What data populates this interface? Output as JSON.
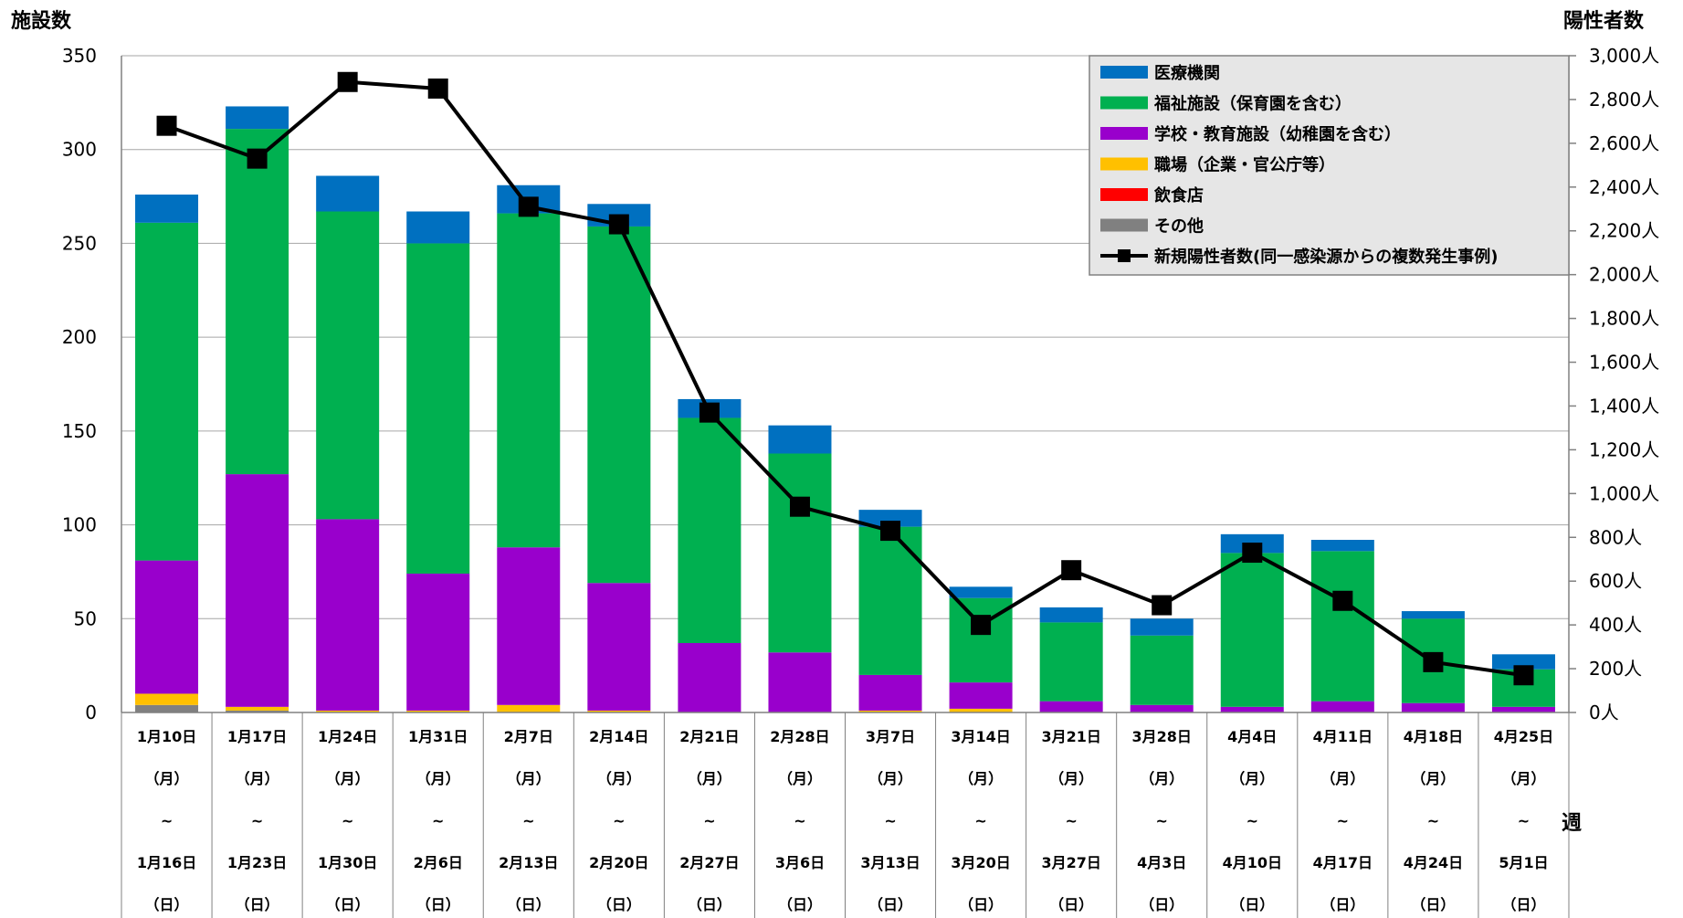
{
  "chart_data": {
    "type": "bar",
    "stacked": true,
    "y_left_title": "施設数",
    "y_right_title": "陽性者数",
    "x_title": "週",
    "y_left_ticks": [
      "0",
      "50",
      "100",
      "150",
      "200",
      "250",
      "300",
      "350"
    ],
    "y_left_range": [
      0,
      350
    ],
    "y_right_ticks": [
      "0人",
      "200人",
      "400人",
      "600人",
      "800人",
      "1,000人",
      "1,200人",
      "1,400人",
      "1,600人",
      "1,800人",
      "2,000人",
      "2,200人",
      "2,400人",
      "2,600人",
      "2,800人",
      "3,000人"
    ],
    "y_right_range": [
      0,
      3000
    ],
    "grid": true,
    "legend_position": "top-right",
    "categories": [
      {
        "start": "1月10日",
        "start_dow": "（月）",
        "sep": "~",
        "end": "1月16日",
        "end_dow": "（日）"
      },
      {
        "start": "1月17日",
        "start_dow": "（月）",
        "sep": "~",
        "end": "1月23日",
        "end_dow": "（日）"
      },
      {
        "start": "1月24日",
        "start_dow": "（月）",
        "sep": "~",
        "end": "1月30日",
        "end_dow": "（日）"
      },
      {
        "start": "1月31日",
        "start_dow": "（月）",
        "sep": "~",
        "end": "2月6日",
        "end_dow": "（日）"
      },
      {
        "start": "2月7日",
        "start_dow": "（月）",
        "sep": "~",
        "end": "2月13日",
        "end_dow": "（日）"
      },
      {
        "start": "2月14日",
        "start_dow": "（月）",
        "sep": "~",
        "end": "2月20日",
        "end_dow": "（日）"
      },
      {
        "start": "2月21日",
        "start_dow": "（月）",
        "sep": "~",
        "end": "2月27日",
        "end_dow": "（日）"
      },
      {
        "start": "2月28日",
        "start_dow": "（月）",
        "sep": "~",
        "end": "3月6日",
        "end_dow": "（日）"
      },
      {
        "start": "3月7日",
        "start_dow": "（月）",
        "sep": "~",
        "end": "3月13日",
        "end_dow": "（日）"
      },
      {
        "start": "3月14日",
        "start_dow": "（月）",
        "sep": "~",
        "end": "3月20日",
        "end_dow": "（日）"
      },
      {
        "start": "3月21日",
        "start_dow": "（月）",
        "sep": "~",
        "end": "3月27日",
        "end_dow": "（日）"
      },
      {
        "start": "3月28日",
        "start_dow": "（月）",
        "sep": "~",
        "end": "4月3日",
        "end_dow": "（日）"
      },
      {
        "start": "4月4日",
        "start_dow": "（月）",
        "sep": "~",
        "end": "4月10日",
        "end_dow": "（日）"
      },
      {
        "start": "4月11日",
        "start_dow": "（月）",
        "sep": "~",
        "end": "4月17日",
        "end_dow": "（日）"
      },
      {
        "start": "4月18日",
        "start_dow": "（月）",
        "sep": "~",
        "end": "4月24日",
        "end_dow": "（日）"
      },
      {
        "start": "4月25日",
        "start_dow": "（月）",
        "sep": "~",
        "end": "5月1日",
        "end_dow": "（日）"
      }
    ],
    "series": [
      {
        "name": "その他",
        "color": "#808080",
        "values": [
          4,
          1,
          0,
          0,
          0,
          0,
          0,
          0,
          0,
          0,
          0,
          0,
          0,
          0,
          0,
          0
        ]
      },
      {
        "name": "飲食店",
        "color": "#ff0000",
        "values": [
          0,
          0,
          0,
          0,
          0,
          0,
          0,
          0,
          0,
          0,
          0,
          0,
          0,
          0,
          0,
          0
        ]
      },
      {
        "name": "職場（企業・官公庁等）",
        "color": "#ffc000",
        "values": [
          6,
          2,
          1,
          1,
          4,
          1,
          0,
          0,
          1,
          2,
          0,
          0,
          0,
          0,
          0,
          0
        ]
      },
      {
        "name": "学校・教育施設（幼稚園を含む）",
        "color": "#9900cc",
        "values": [
          71,
          124,
          102,
          73,
          84,
          68,
          37,
          32,
          19,
          14,
          6,
          4,
          3,
          6,
          5,
          3
        ]
      },
      {
        "name": "福祉施設（保育園を含む）",
        "color": "#00b050",
        "values": [
          180,
          184,
          164,
          176,
          178,
          190,
          120,
          106,
          79,
          45,
          42,
          37,
          82,
          80,
          45,
          20
        ]
      },
      {
        "name": "医療機関",
        "color": "#0070c0",
        "values": [
          15,
          12,
          19,
          17,
          15,
          12,
          10,
          15,
          9,
          6,
          8,
          9,
          10,
          6,
          4,
          8
        ]
      }
    ],
    "line": {
      "name": "新規陽性者数(同一感染源からの複数発生事例)",
      "color": "#000000",
      "axis": "right",
      "values": [
        2680,
        2530,
        2880,
        2850,
        2310,
        2230,
        1370,
        940,
        830,
        400,
        650,
        490,
        730,
        510,
        230,
        170
      ]
    },
    "legend_order": [
      "医療機関",
      "福祉施設（保育園を含む）",
      "学校・教育施設（幼稚園を含む）",
      "職場（企業・官公庁等）",
      "飲食店",
      "その他",
      "新規陽性者数(同一感染源からの複数発生事例)"
    ]
  }
}
